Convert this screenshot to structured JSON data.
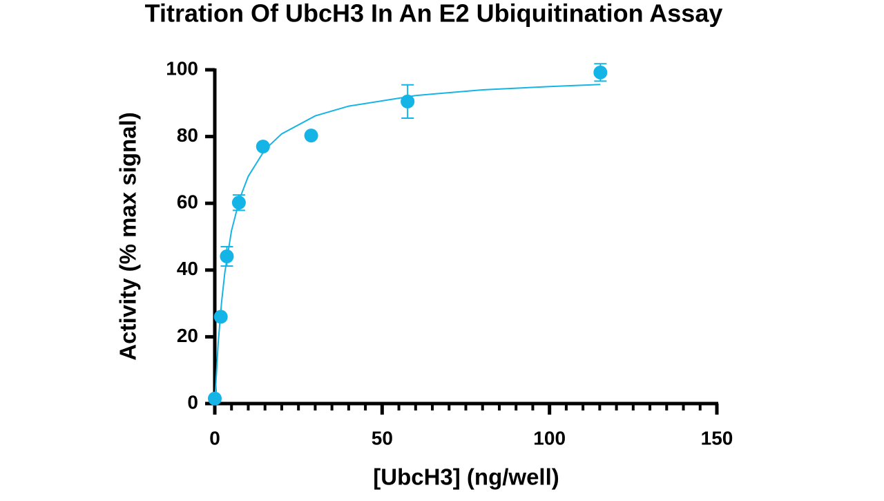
{
  "chart_data": {
    "type": "scatter",
    "title": "Titration Of UbcH3 In An E2 Ubiquitination Assay",
    "x_label": "[UbcH3] (ng/well)",
    "y_label": "Activity (% max signal)",
    "xlim": [
      0,
      150
    ],
    "ylim": [
      0,
      100
    ],
    "xticks": [
      0,
      50,
      100,
      150
    ],
    "xminorticks": [
      5,
      10,
      15,
      20,
      25,
      30,
      35,
      40,
      45,
      55,
      60,
      65,
      70,
      75,
      80,
      85,
      90,
      95,
      105,
      110,
      115,
      120,
      125,
      130,
      135,
      140,
      145
    ],
    "yticks": [
      0,
      20,
      40,
      60,
      80,
      100
    ],
    "series": [
      {
        "color": "#14b4e6",
        "x": [
          0,
          1.8,
          3.6,
          7.2,
          14.4,
          28.8,
          57.6,
          115.2
        ],
        "values": [
          1.5,
          26,
          44.1,
          60.2,
          77,
          80.3,
          90.5,
          99.2
        ],
        "errors": [
          0,
          0,
          2.9,
          2.3,
          0,
          0,
          5,
          2.6
        ]
      }
    ],
    "fit": {
      "color": "#14b4e6",
      "x": [
        0,
        1,
        2,
        3,
        5,
        7.5,
        10,
        15,
        20,
        30,
        40,
        60,
        80,
        100,
        115.2
      ],
      "values": [
        0,
        17.8,
        30.1,
        39.2,
        51.8,
        61.6,
        68.1,
        76.1,
        80.8,
        86.2,
        89.1,
        92.3,
        94.0,
        95.0,
        95.6
      ]
    }
  }
}
